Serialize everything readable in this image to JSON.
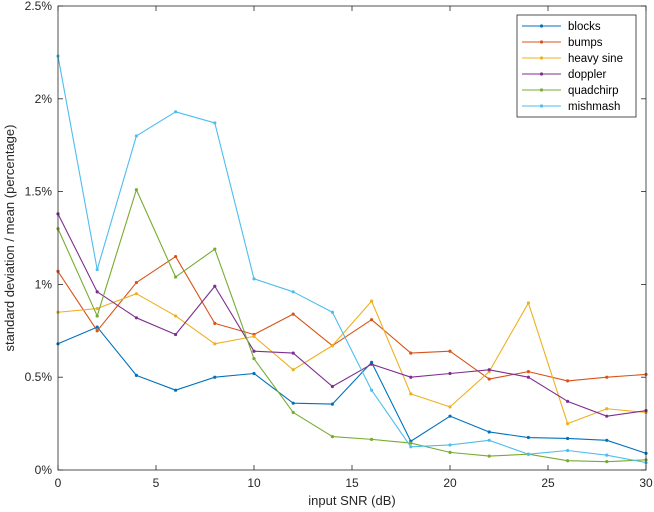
{
  "chart_data": {
    "type": "line",
    "title": "",
    "xlabel": "input SNR (dB)",
    "ylabel": "standard deviation / mean (percentage)",
    "xlim": [
      0,
      30
    ],
    "ylim": [
      0,
      2.5
    ],
    "grid": false,
    "legend_position": "top-right",
    "x": [
      0,
      2,
      4,
      6,
      8,
      10,
      12,
      14,
      16,
      18,
      20,
      22,
      24,
      26,
      28,
      30
    ],
    "xticks": [
      {
        "value": 0,
        "label": "0"
      },
      {
        "value": 5,
        "label": "5"
      },
      {
        "value": 10,
        "label": "10"
      },
      {
        "value": 15,
        "label": "15"
      },
      {
        "value": 20,
        "label": "20"
      },
      {
        "value": 25,
        "label": "25"
      },
      {
        "value": 30,
        "label": "30"
      }
    ],
    "yticks": [
      {
        "value": 0,
        "label": "0%"
      },
      {
        "value": 0.5,
        "label": "0.5%"
      },
      {
        "value": 1,
        "label": "1%"
      },
      {
        "value": 1.5,
        "label": "1.5%"
      },
      {
        "value": 2,
        "label": "2%"
      },
      {
        "value": 2.5,
        "label": "2.5%"
      }
    ],
    "series": [
      {
        "name": "blocks",
        "color": "#0072BD",
        "values": [
          0.68,
          0.77,
          0.51,
          0.43,
          0.5,
          0.52,
          0.36,
          0.355,
          0.58,
          0.155,
          0.29,
          0.205,
          0.175,
          0.17,
          0.16,
          0.09
        ]
      },
      {
        "name": "bumps",
        "color": "#D95319",
        "values": [
          1.07,
          0.75,
          1.01,
          1.15,
          0.79,
          0.73,
          0.84,
          0.67,
          0.81,
          0.63,
          0.64,
          0.49,
          0.53,
          0.48,
          0.5,
          0.515
        ]
      },
      {
        "name": "heavy sine",
        "color": "#EDB120",
        "values": [
          0.85,
          0.87,
          0.95,
          0.83,
          0.68,
          0.72,
          0.54,
          0.67,
          0.91,
          0.41,
          0.34,
          0.53,
          0.9,
          0.25,
          0.33,
          0.31
        ]
      },
      {
        "name": "doppler",
        "color": "#7E2F8E",
        "values": [
          1.38,
          0.96,
          0.82,
          0.73,
          0.99,
          0.64,
          0.63,
          0.45,
          0.57,
          0.5,
          0.52,
          0.54,
          0.5,
          0.37,
          0.29,
          0.32
        ]
      },
      {
        "name": "quadchirp",
        "color": "#77AC30",
        "values": [
          1.3,
          0.83,
          1.51,
          1.04,
          1.19,
          0.6,
          0.31,
          0.18,
          0.165,
          0.145,
          0.095,
          0.075,
          0.085,
          0.05,
          0.045,
          0.055
        ]
      },
      {
        "name": "mishmash",
        "color": "#4DBEEE",
        "values": [
          2.23,
          1.08,
          1.8,
          1.93,
          1.87,
          1.03,
          0.96,
          0.85,
          0.43,
          0.125,
          0.135,
          0.16,
          0.085,
          0.105,
          0.08,
          0.04
        ]
      }
    ]
  }
}
